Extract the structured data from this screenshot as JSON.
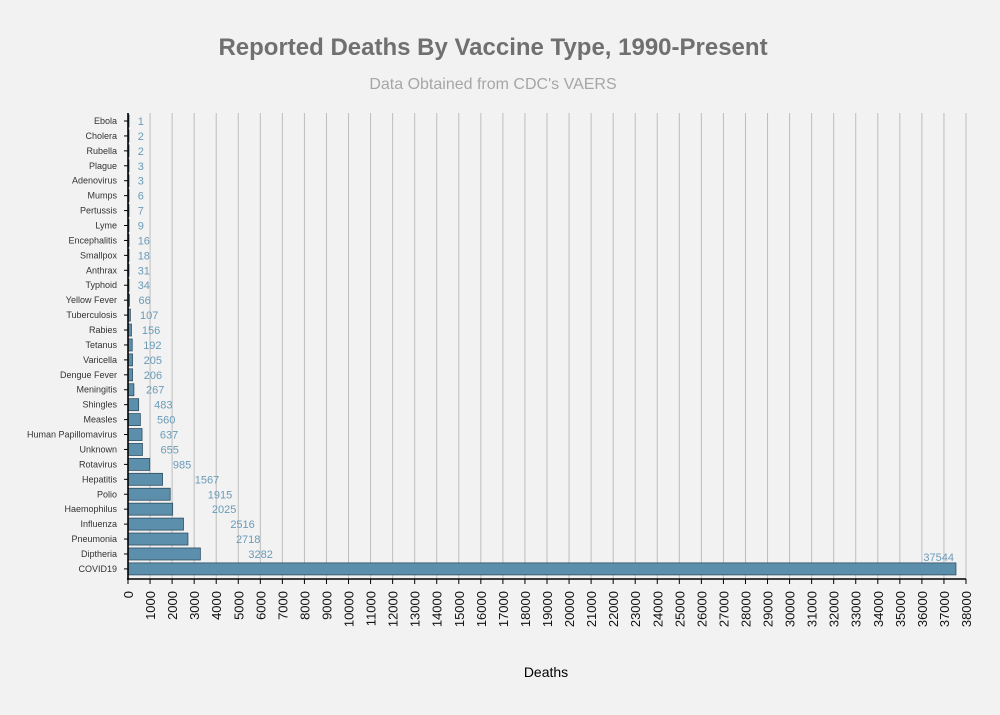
{
  "chart_data": {
    "type": "bar",
    "orientation": "horizontal",
    "title": "Reported Deaths By Vaccine Type, 1990-Present",
    "subtitle": "Data Obtained from CDC's VAERS",
    "xlabel": "Deaths",
    "ylabel": "",
    "xlim": [
      0,
      38000
    ],
    "x_ticks": [
      0,
      1000,
      2000,
      3000,
      4000,
      5000,
      6000,
      7000,
      8000,
      9000,
      10000,
      11000,
      12000,
      13000,
      14000,
      15000,
      16000,
      17000,
      18000,
      19000,
      20000,
      21000,
      22000,
      23000,
      24000,
      25000,
      26000,
      27000,
      28000,
      29000,
      30000,
      31000,
      32000,
      33000,
      34000,
      35000,
      36000,
      37000,
      38000
    ],
    "categories": [
      "Ebola",
      "Cholera",
      "Rubella",
      "Plague",
      "Adenovirus",
      "Mumps",
      "Pertussis",
      "Lyme",
      "Encephalitis",
      "Smallpox",
      "Anthrax",
      "Typhoid",
      "Yellow Fever",
      "Tuberculosis",
      "Rabies",
      "Tetanus",
      "Varicella",
      "Dengue Fever",
      "Meningitis",
      "Shingles",
      "Measles",
      "Human Papillomavirus",
      "Unknown",
      "Rotavirus",
      "Hepatitis",
      "Polio",
      "Haemophilus",
      "Influenza",
      "Pneumonia",
      "Diptheria",
      "COVID19"
    ],
    "values": [
      1,
      2,
      2,
      3,
      3,
      6,
      7,
      9,
      16,
      18,
      31,
      34,
      66,
      107,
      156,
      192,
      205,
      206,
      267,
      483,
      560,
      637,
      655,
      985,
      1567,
      1915,
      2025,
      2516,
      2718,
      3282,
      37544
    ],
    "grid": true,
    "legend": "none",
    "colors": {
      "bar": "#5b8fab",
      "bar_edge": "#2f4f63",
      "data_label": "#6a9bb7",
      "title": "#707070",
      "subtitle": "#a6a6a6",
      "grid": "#bdbdbd",
      "background": "#f2f2f2"
    }
  }
}
